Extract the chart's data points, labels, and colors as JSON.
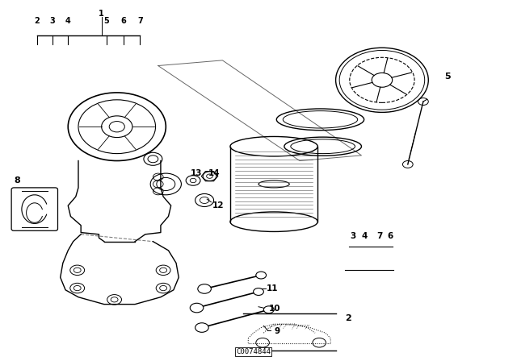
{
  "bg_color": "#ffffff",
  "line_color": "#000000",
  "fig_width": 6.4,
  "fig_height": 4.48,
  "dpi": 100,
  "watermark": "C0074844"
}
